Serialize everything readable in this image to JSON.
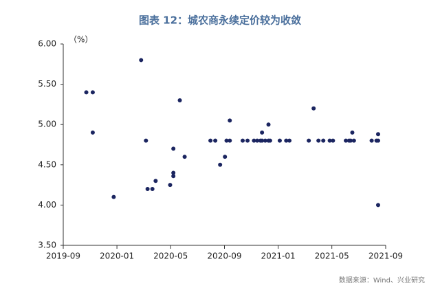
{
  "chart_data": {
    "type": "scatter",
    "title": "图表 12：城农商永续定价较为收敛",
    "y_label": "（%）",
    "source": "数据来源：Wind、兴业研究",
    "color": "#1b2560",
    "xlim": [
      2019.667,
      2021.667
    ],
    "xticks": [
      {
        "value": 2019.667,
        "label": "2019-09"
      },
      {
        "value": 2020.0,
        "label": "2020-01"
      },
      {
        "value": 2020.333,
        "label": "2020-05"
      },
      {
        "value": 2020.667,
        "label": "2020-09"
      },
      {
        "value": 2021.0,
        "label": "2021-01"
      },
      {
        "value": 2021.333,
        "label": "2021-05"
      },
      {
        "value": 2021.667,
        "label": "2021-09"
      }
    ],
    "ylim": [
      3.5,
      6.0
    ],
    "yticks": [
      {
        "value": 3.5,
        "label": "3.50"
      },
      {
        "value": 4.0,
        "label": "4.00"
      },
      {
        "value": 4.5,
        "label": "4.50"
      },
      {
        "value": 5.0,
        "label": "5.00"
      },
      {
        "value": 5.5,
        "label": "5.50"
      },
      {
        "value": 6.0,
        "label": "6.00"
      }
    ],
    "x": [
      2019.81,
      2019.85,
      2019.85,
      2019.98,
      2020.15,
      2020.18,
      2020.19,
      2020.22,
      2020.24,
      2020.33,
      2020.35,
      2020.35,
      2020.35,
      2020.39,
      2020.42,
      2020.58,
      2020.61,
      2020.64,
      2020.67,
      2020.68,
      2020.7,
      2020.7,
      2020.78,
      2020.81,
      2020.85,
      2020.87,
      2020.89,
      2020.9,
      2020.9,
      2020.92,
      2020.94,
      2020.94,
      2020.95,
      2021.01,
      2021.05,
      2021.07,
      2021.19,
      2021.22,
      2021.25,
      2021.28,
      2021.32,
      2021.34,
      2021.42,
      2021.44,
      2021.45,
      2021.46,
      2021.47,
      2021.58,
      2021.61,
      2021.62,
      2021.62,
      2021.62
    ],
    "values": [
      5.4,
      5.4,
      4.9,
      4.1,
      5.8,
      4.8,
      4.2,
      4.2,
      4.3,
      4.25,
      4.7,
      4.36,
      4.4,
      5.3,
      4.6,
      4.8,
      4.8,
      4.5,
      4.6,
      4.8,
      4.8,
      5.05,
      4.8,
      4.8,
      4.8,
      4.8,
      4.8,
      4.9,
      4.8,
      4.8,
      4.8,
      5.0,
      4.8,
      4.8,
      4.8,
      4.8,
      4.8,
      5.2,
      4.8,
      4.8,
      4.8,
      4.8,
      4.8,
      4.8,
      4.8,
      4.9,
      4.8,
      4.8,
      4.8,
      4.8,
      4.88,
      4.0
    ]
  }
}
